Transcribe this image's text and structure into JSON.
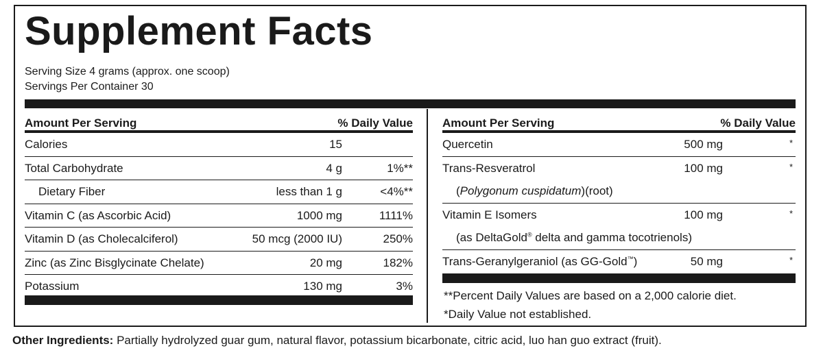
{
  "title": "Supplement Facts",
  "serving_size": "Serving Size 4 grams (approx. one scoop)",
  "servings_per_container": "Servings Per Container 30",
  "left_table": {
    "header_amount": "Amount Per Serving",
    "header_dv": "% Daily Value",
    "rows": [
      {
        "name": "Calories",
        "amount": "15",
        "dv": ""
      },
      {
        "name": "Total Carbohydrate",
        "amount": "4 g",
        "dv": "1%**"
      },
      {
        "name": "Dietary Fiber",
        "amount": "less than 1 g",
        "dv": "<4%**"
      },
      {
        "name": "Vitamin C (as Ascorbic Acid)",
        "amount": "1000 mg",
        "dv": "1111%"
      },
      {
        "name": "Vitamin D (as Cholecalciferol)",
        "amount": "50 mcg (2000 IU)",
        "dv": "250%"
      },
      {
        "name": "Zinc (as Zinc Bisglycinate Chelate)",
        "amount": "20 mg",
        "dv": "182%"
      },
      {
        "name": "Potassium",
        "amount": "130 mg",
        "dv": "3%"
      }
    ]
  },
  "right_table": {
    "header_amount": "Amount Per Serving",
    "header_dv": "% Daily Value",
    "quercetin": {
      "name": "Quercetin",
      "amount": "500 mg",
      "dv": "*"
    },
    "resveratrol": {
      "name": "Trans-Resveratrol",
      "amount": "100 mg",
      "dv": "*",
      "source_italic": "Polygonum cuspidatum",
      "source_rest": "(root)"
    },
    "vitamin_e": {
      "name": "Vitamin E Isomers",
      "amount": "100 mg",
      "dv": "*",
      "sub_pre": "(as DeltaGold",
      "sub_mark": "®",
      "sub_post": " delta and gamma tocotrienols)"
    },
    "geranylgeraniol": {
      "name_pre": "Trans-Geranylgeraniol (as GG-Gold",
      "name_mark": "™",
      "name_post": ")",
      "amount": "50 mg",
      "dv": "*"
    }
  },
  "footnotes": {
    "percent_note": "**Percent Daily Values are based on a 2,000 calorie diet.",
    "dv_note": "*Daily Value not established."
  },
  "other_ingredients": {
    "label": "Other Ingredients:",
    "text": " Partially hydrolyzed guar gum, natural flavor, potassium bicarbonate, citric acid, luo han guo extract (fruit)."
  }
}
